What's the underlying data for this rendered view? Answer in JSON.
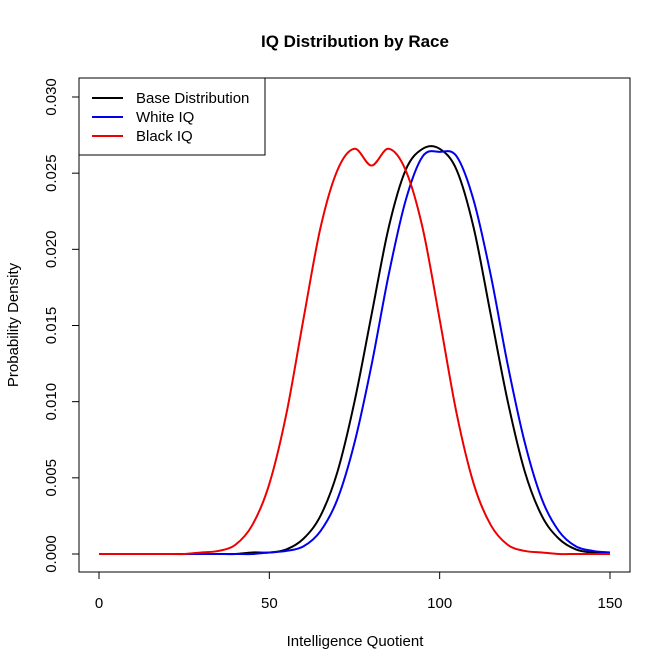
{
  "chart_data": {
    "type": "line",
    "title": "IQ Distribution by Race",
    "xlabel": "Intelligence Quotient",
    "ylabel": "Probability Density",
    "xlim": [
      0,
      150
    ],
    "ylim": [
      0,
      0.03
    ],
    "x_ticks": [
      0,
      50,
      100,
      150
    ],
    "x_tick_labels": [
      "0",
      "50",
      "100",
      "150"
    ],
    "y_ticks": [
      0,
      0.005,
      0.01,
      0.015,
      0.02,
      0.025,
      0.03
    ],
    "y_tick_labels": [
      "0.000",
      "0.005",
      "0.010",
      "0.015",
      "0.020",
      "0.025",
      "0.030"
    ],
    "legend_position": "top-left",
    "grid": false,
    "series": [
      {
        "name": "Base Distribution",
        "color": "#000000",
        "x": [
          0,
          5,
          10,
          15,
          20,
          25,
          30,
          35,
          40,
          45,
          50,
          55,
          60,
          65,
          70,
          75,
          80,
          85,
          90,
          95,
          100,
          105,
          110,
          115,
          120,
          125,
          130,
          135,
          140,
          145,
          150
        ],
        "values": [
          0.0,
          0.0,
          0.0,
          0.0,
          0.0,
          0.0,
          0.0,
          0.0,
          0.0,
          0.0001,
          0.0001,
          0.0003,
          0.001,
          0.0025,
          0.0054,
          0.01,
          0.0157,
          0.0214,
          0.0252,
          0.0266,
          0.0266,
          0.0252,
          0.0214,
          0.0157,
          0.01,
          0.0054,
          0.0025,
          0.001,
          0.0003,
          0.0001,
          0.0001
        ]
      },
      {
        "name": "White IQ",
        "color": "#0000ee",
        "x": [
          0,
          5,
          10,
          15,
          20,
          25,
          30,
          35,
          40,
          45,
          50,
          55,
          60,
          65,
          70,
          75,
          80,
          85,
          90,
          95,
          100,
          105,
          110,
          115,
          120,
          125,
          130,
          135,
          140,
          145,
          150
        ],
        "values": [
          0.0,
          0.0,
          0.0,
          0.0,
          0.0,
          0.0,
          0.0,
          0.0,
          0.0,
          0.0,
          0.0001,
          0.0002,
          0.0005,
          0.0015,
          0.0036,
          0.0073,
          0.0124,
          0.0183,
          0.0232,
          0.0261,
          0.0264,
          0.0261,
          0.0232,
          0.0183,
          0.0124,
          0.0073,
          0.0036,
          0.0015,
          0.0005,
          0.0002,
          0.0001
        ]
      },
      {
        "name": "Black IQ",
        "color": "#ee0000",
        "x": [
          0,
          5,
          10,
          15,
          20,
          25,
          30,
          35,
          40,
          45,
          50,
          55,
          60,
          65,
          70,
          75,
          80,
          85,
          90,
          95,
          100,
          105,
          110,
          115,
          120,
          125,
          130,
          135,
          140,
          145,
          150
        ],
        "values": [
          0.0,
          0.0,
          0.0,
          0.0,
          0.0,
          0.0,
          0.0001,
          0.0002,
          0.0006,
          0.0019,
          0.0046,
          0.0092,
          0.0154,
          0.0214,
          0.0252,
          0.0266,
          0.0255,
          0.0266,
          0.0252,
          0.0214,
          0.0154,
          0.0092,
          0.0046,
          0.0019,
          0.0006,
          0.0002,
          0.0001,
          0.0,
          0.0,
          0.0,
          0.0
        ]
      }
    ]
  }
}
